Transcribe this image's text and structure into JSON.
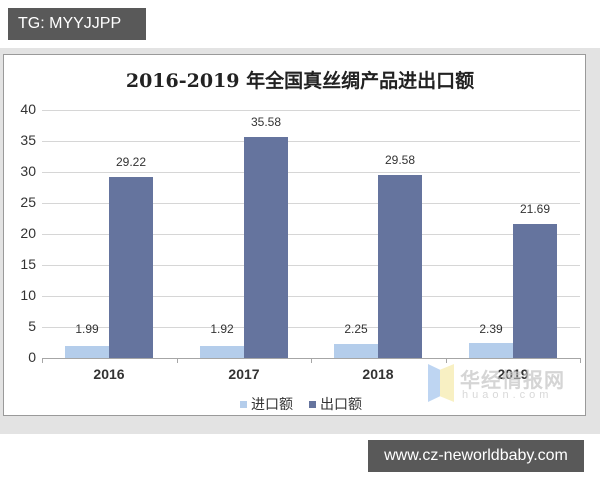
{
  "tags": {
    "top": "TG: MYYJJPP",
    "bottom": "www.cz-neworldbaby.com"
  },
  "watermark": {
    "cn": "华经情报网",
    "en": "huaon.com"
  },
  "colors": {
    "import": "#b4cdeb",
    "export": "#65749e",
    "grid": "#d6d6d6",
    "tag_bg": "#595959"
  },
  "chart_data": {
    "type": "bar",
    "title": "2016-2019 年全国真丝绸产品进出口额",
    "xlabel": "",
    "ylabel": "",
    "ylim": [
      0,
      40
    ],
    "yticks": [
      "0",
      "5",
      "10",
      "15",
      "20",
      "25",
      "30",
      "35",
      "40"
    ],
    "grid": true,
    "legend_position": "bottom",
    "categories": [
      "2016",
      "2017",
      "2018",
      "2019"
    ],
    "series": [
      {
        "name": "进口额",
        "values": [
          1.99,
          1.92,
          2.25,
          2.39
        ],
        "labels": [
          "1.99",
          "1.92",
          "2.25",
          "2.39"
        ]
      },
      {
        "name": "出口额",
        "values": [
          29.22,
          35.58,
          29.58,
          21.69
        ],
        "labels": [
          "29.22",
          "35.58",
          "29.58",
          "21.69"
        ]
      }
    ]
  }
}
